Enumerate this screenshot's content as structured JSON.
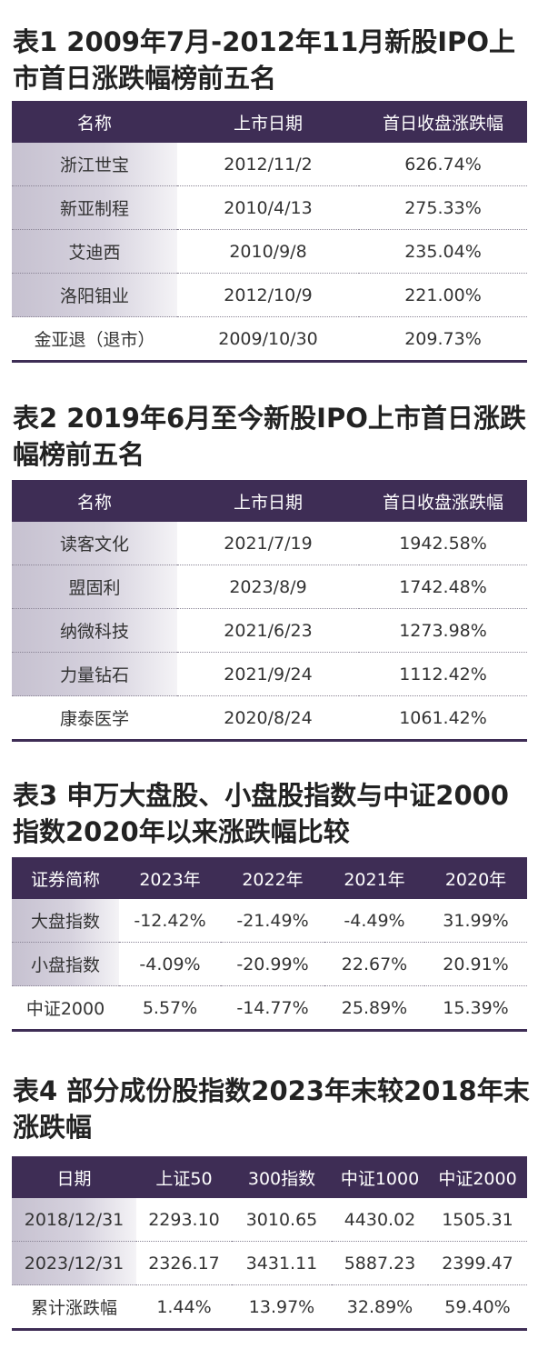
{
  "table1": {
    "title": "表1  2009年7月-2012年11月新股IPO上市首日涨跌幅榜前五名",
    "headers": [
      "名称",
      "上市日期",
      "首日收盘涨跌幅"
    ],
    "rows": [
      [
        "浙江世宝",
        "2012/11/2",
        "626.74%"
      ],
      [
        "新亚制程",
        "2010/4/13",
        "275.33%"
      ],
      [
        "艾迪西",
        "2010/9/8",
        "235.04%"
      ],
      [
        "洛阳钼业",
        "2012/10/9",
        "221.00%"
      ],
      [
        "金亚退（退市）",
        "2009/10/30",
        "209.73%"
      ]
    ]
  },
  "table2": {
    "title": "表2  2019年6月至今新股IPO上市首日涨跌幅榜前五名",
    "headers": [
      "名称",
      "上市日期",
      "首日收盘涨跌幅"
    ],
    "rows": [
      [
        "读客文化",
        "2021/7/19",
        "1942.58%"
      ],
      [
        "盟固利",
        "2023/8/9",
        "1742.48%"
      ],
      [
        "纳微科技",
        "2021/6/23",
        "1273.98%"
      ],
      [
        "力量钻石",
        "2021/9/24",
        "1112.42%"
      ],
      [
        "康泰医学",
        "2020/8/24",
        "1061.42%"
      ]
    ]
  },
  "table3": {
    "title": "表3  申万大盘股、小盘股指数与中证2000指数2020年以来涨跌幅比较",
    "headers": [
      "证券简称",
      "2023年",
      "2022年",
      "2021年",
      "2020年"
    ],
    "rows": [
      [
        "大盘指数",
        "-12.42%",
        "-21.49%",
        "-4.49%",
        "31.99%"
      ],
      [
        "小盘指数",
        "-4.09%",
        "-20.99%",
        "22.67%",
        "20.91%"
      ],
      [
        "中证2000",
        "5.57%",
        "-14.77%",
        "25.89%",
        "15.39%"
      ]
    ]
  },
  "table4": {
    "title": "表4  部分成份股指数2023年末较2018年末涨跌幅",
    "headers": [
      "日期",
      "上证50",
      "300指数",
      "中证1000",
      "中证2000"
    ],
    "rows": [
      [
        "2018/12/31",
        "2293.10",
        "3010.65",
        "4430.02",
        "1505.31"
      ],
      [
        "2023/12/31",
        "2326.17",
        "3431.11",
        "5887.23",
        "2399.47"
      ],
      [
        "累计涨跌幅",
        "1.44%",
        "13.97%",
        "32.89%",
        "59.40%"
      ]
    ]
  }
}
